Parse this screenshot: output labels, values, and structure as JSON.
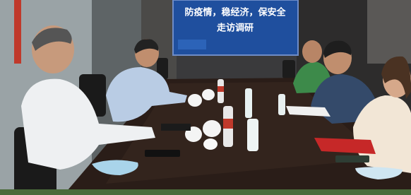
{
  "screen": {
    "title": "防疫情，稳经济，保安全",
    "subtitle": "走访调研"
  }
}
